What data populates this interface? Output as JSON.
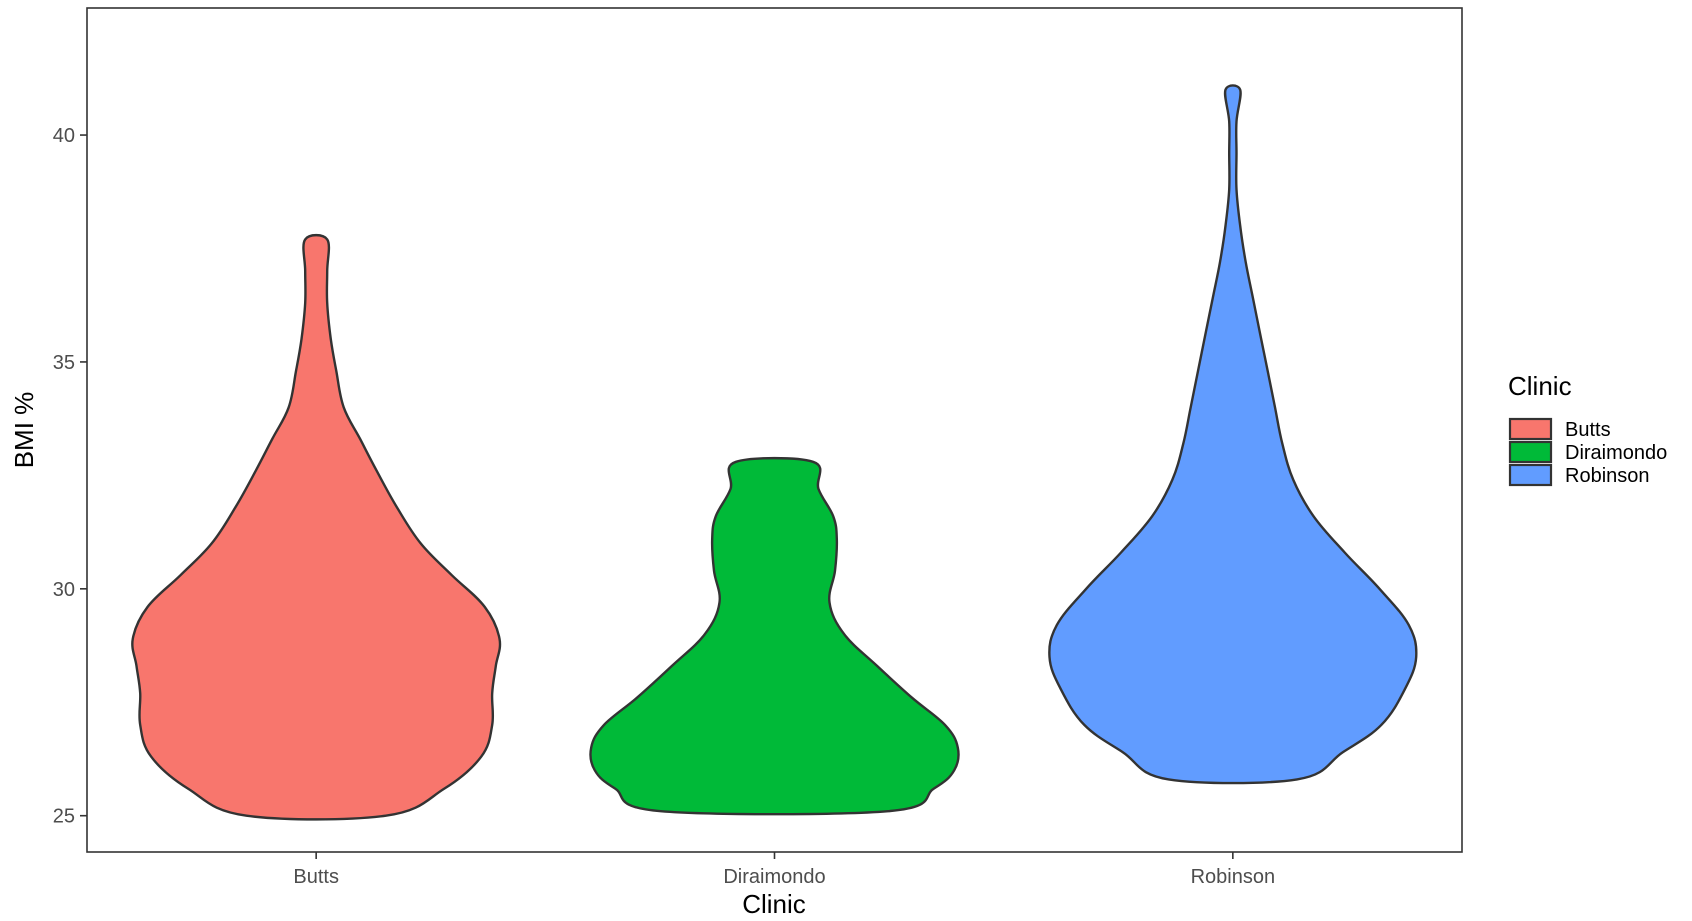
{
  "chart_data": {
    "type": "violin",
    "xlabel": "Clinic",
    "ylabel": "BMI %",
    "ylim": [
      24.2,
      42.8
    ],
    "yticks": [
      25,
      30,
      35,
      40
    ],
    "grid": false,
    "legend": {
      "title": "Clinic",
      "placement": "right",
      "entries": [
        "Butts",
        "Diraimondo",
        "Robinson"
      ]
    },
    "categories": [
      "Butts",
      "Diraimondo",
      "Robinson"
    ],
    "series": [
      {
        "name": "Butts",
        "color": "#F8766D",
        "min": 25.0,
        "max": 37.7,
        "density": [
          [
            25.0,
            0.38
          ],
          [
            25.6,
            0.7
          ],
          [
            26.3,
            0.9
          ],
          [
            27.0,
            0.96
          ],
          [
            27.7,
            0.96
          ],
          [
            28.3,
            0.98
          ],
          [
            28.9,
            1.0
          ],
          [
            29.6,
            0.92
          ],
          [
            30.3,
            0.74
          ],
          [
            31.0,
            0.57
          ],
          [
            31.8,
            0.44
          ],
          [
            32.6,
            0.33
          ],
          [
            33.3,
            0.24
          ],
          [
            34.0,
            0.15
          ],
          [
            34.8,
            0.11
          ],
          [
            35.5,
            0.08
          ],
          [
            36.3,
            0.06
          ],
          [
            37.0,
            0.06
          ],
          [
            37.7,
            0.06
          ]
        ]
      },
      {
        "name": "Diraimondo",
        "color": "#00BA38",
        "min": 25.1,
        "max": 32.8,
        "density": [
          [
            25.1,
            0.62
          ],
          [
            25.6,
            0.87
          ],
          [
            26.0,
            0.98
          ],
          [
            26.5,
            1.0
          ],
          [
            27.0,
            0.93
          ],
          [
            27.6,
            0.75
          ],
          [
            28.3,
            0.56
          ],
          [
            29.0,
            0.38
          ],
          [
            29.7,
            0.3
          ],
          [
            30.4,
            0.33
          ],
          [
            31.1,
            0.34
          ],
          [
            31.6,
            0.32
          ],
          [
            32.2,
            0.24
          ],
          [
            32.8,
            0.21
          ]
        ]
      },
      {
        "name": "Robinson",
        "color": "#619CFF",
        "min": 25.8,
        "max": 41.0,
        "density": [
          [
            25.8,
            0.35
          ],
          [
            26.4,
            0.6
          ],
          [
            27.0,
            0.81
          ],
          [
            27.8,
            0.94
          ],
          [
            28.5,
            1.0
          ],
          [
            29.2,
            0.96
          ],
          [
            30.0,
            0.8
          ],
          [
            30.8,
            0.61
          ],
          [
            31.6,
            0.44
          ],
          [
            32.4,
            0.33
          ],
          [
            33.2,
            0.27
          ],
          [
            34.0,
            0.23
          ],
          [
            34.8,
            0.19
          ],
          [
            35.6,
            0.15
          ],
          [
            36.4,
            0.11
          ],
          [
            37.2,
            0.07
          ],
          [
            38.0,
            0.04
          ],
          [
            38.8,
            0.02
          ],
          [
            39.6,
            0.02
          ],
          [
            40.3,
            0.02
          ],
          [
            41.0,
            0.04
          ]
        ]
      }
    ]
  }
}
